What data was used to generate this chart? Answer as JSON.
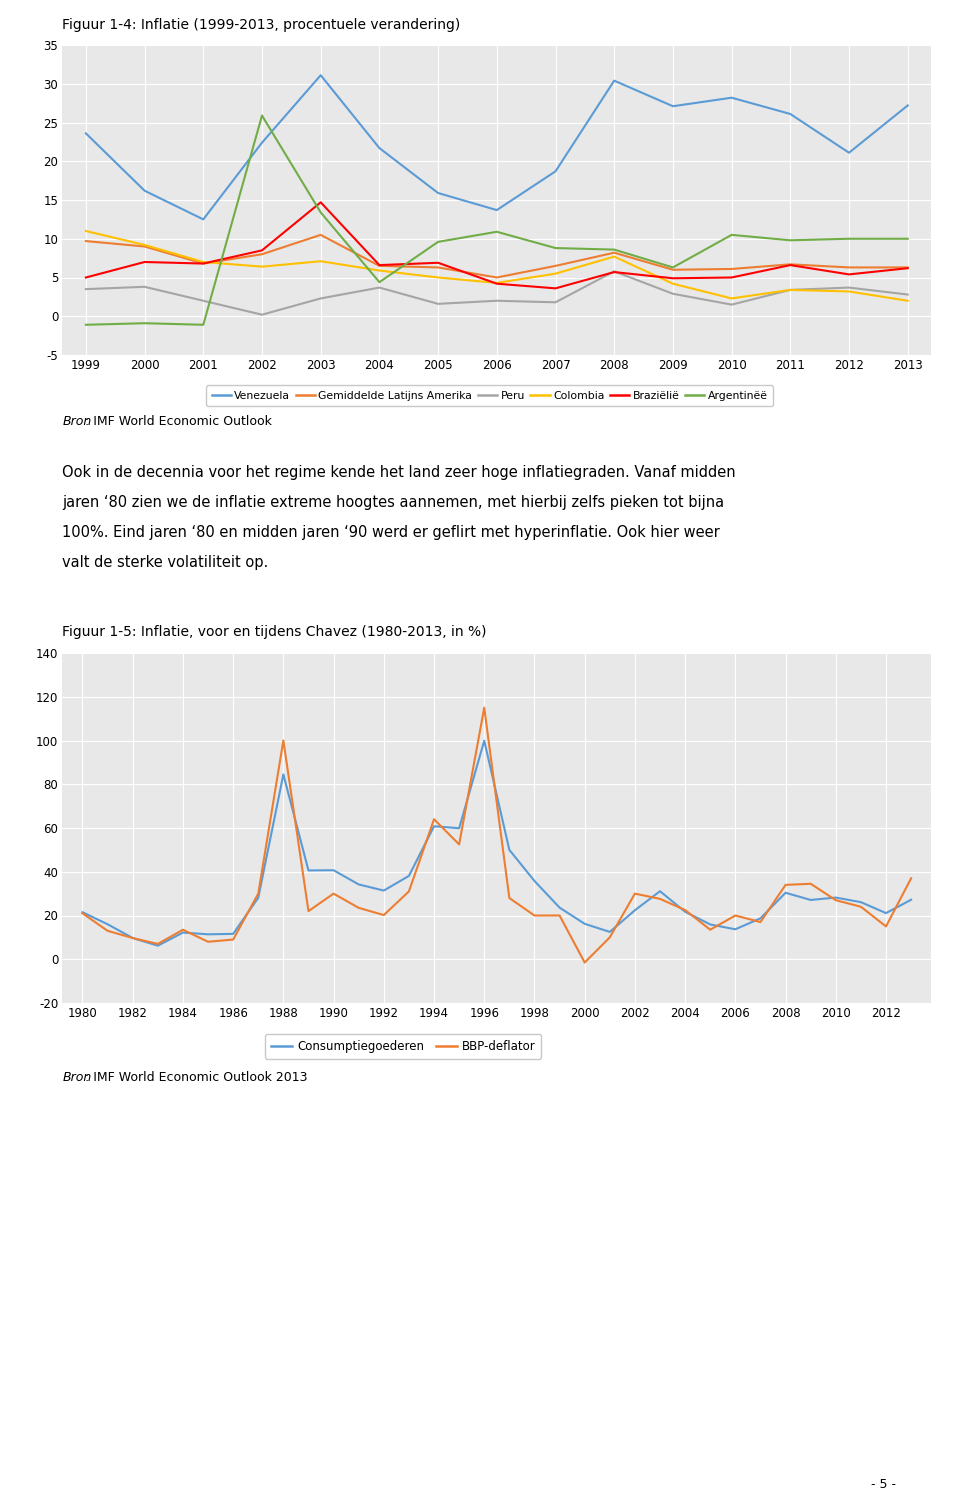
{
  "fig1_title": "Figuur 1-4: Inflatie (1999-2013, procentuele verandering)",
  "fig1_years": [
    1999,
    2000,
    2001,
    2002,
    2003,
    2004,
    2005,
    2006,
    2007,
    2008,
    2009,
    2010,
    2011,
    2012,
    2013
  ],
  "fig1_venezuela": [
    23.6,
    16.2,
    12.5,
    22.4,
    31.1,
    21.7,
    15.9,
    13.7,
    18.7,
    30.4,
    27.1,
    28.2,
    26.1,
    21.1,
    27.2
  ],
  "fig1_gemiddelde": [
    9.7,
    9.0,
    6.8,
    8.0,
    10.5,
    6.5,
    6.3,
    5.0,
    6.5,
    8.2,
    6.0,
    6.1,
    6.7,
    6.3,
    6.3
  ],
  "fig1_peru": [
    3.5,
    3.8,
    2.0,
    0.2,
    2.3,
    3.7,
    1.6,
    2.0,
    1.8,
    5.8,
    2.9,
    1.5,
    3.4,
    3.7,
    2.8
  ],
  "fig1_colombia": [
    11.0,
    9.2,
    7.0,
    6.4,
    7.1,
    5.9,
    5.0,
    4.3,
    5.5,
    7.7,
    4.2,
    2.3,
    3.4,
    3.2,
    2.0
  ],
  "fig1_brazilie": [
    5.0,
    7.0,
    6.8,
    8.5,
    14.7,
    6.6,
    6.9,
    4.2,
    3.6,
    5.7,
    4.9,
    5.0,
    6.6,
    5.4,
    6.2
  ],
  "fig1_argentinie": [
    -1.1,
    -0.9,
    -1.1,
    25.9,
    13.4,
    4.4,
    9.6,
    10.9,
    8.8,
    8.6,
    6.3,
    10.5,
    9.8,
    10.0,
    10.0
  ],
  "fig1_ylim": [
    -5,
    35
  ],
  "fig1_yticks": [
    -5,
    0,
    5,
    10,
    15,
    20,
    25,
    30,
    35
  ],
  "fig1_legend": [
    "Venezuela",
    "Gemiddelde Latijns Amerika",
    "Peru",
    "Colombia",
    "Braziëlië",
    "Argentinëë"
  ],
  "fig1_colors": [
    "#5B9BD5",
    "#ED7D31",
    "#A5A5A5",
    "#FFC000",
    "#FF0000",
    "#70AD47"
  ],
  "fig1_source_italic": "Bron",
  "fig1_source_rest": ": IMF World Economic Outlook",
  "paragraph_lines": [
    "Ook in de decennia voor het regime kende het land zeer hoge inflatiegraden. Vanaf midden",
    "jaren ‘80 zien we de inflatie extreme hoogtes aannemen, met hierbij zelfs pieken tot bijna",
    "100%. Eind jaren ‘80 en midden jaren ‘90 werd er geflirt met hyperinflatie. Ook hier weer",
    "valt de sterke volatiliteit op."
  ],
  "fig2_title": "Figuur 1-5: Inflatie, voor en tijdens Chavez (1980-2013, in %)",
  "fig2_years": [
    1980,
    1981,
    1982,
    1983,
    1984,
    1985,
    1986,
    1987,
    1988,
    1989,
    1990,
    1991,
    1992,
    1993,
    1994,
    1995,
    1996,
    1997,
    1998,
    1999,
    2000,
    2001,
    2002,
    2003,
    2004,
    2005,
    2006,
    2007,
    2008,
    2009,
    2010,
    2011,
    2012,
    2013
  ],
  "fig2_consumptie": [
    21.5,
    16.0,
    9.7,
    6.2,
    12.2,
    11.4,
    11.6,
    28.1,
    84.5,
    40.6,
    40.7,
    34.2,
    31.4,
    38.1,
    60.8,
    59.9,
    99.9,
    50.0,
    35.8,
    23.6,
    16.2,
    12.5,
    22.4,
    31.1,
    21.7,
    15.9,
    13.7,
    18.7,
    30.4,
    27.1,
    28.2,
    26.1,
    21.1,
    27.2
  ],
  "fig2_bbp": [
    21.0,
    13.0,
    9.7,
    7.0,
    13.5,
    8.0,
    9.0,
    30.0,
    100.0,
    22.0,
    30.0,
    23.5,
    20.2,
    31.0,
    64.0,
    52.5,
    115.0,
    28.0,
    20.0,
    20.0,
    -1.5,
    10.0,
    30.0,
    27.6,
    22.5,
    13.5,
    20.0,
    17.0,
    34.0,
    34.5,
    27.0,
    24.0,
    15.0,
    37.0
  ],
  "fig2_ylim": [
    -20,
    140
  ],
  "fig2_yticks": [
    -20,
    0,
    20,
    40,
    60,
    80,
    100,
    120,
    140
  ],
  "fig2_legend": [
    "Consumptiegoederen",
    "BBP-deflator"
  ],
  "fig2_colors": [
    "#5B9BD5",
    "#ED7D31"
  ],
  "fig2_source_italic": "Bron",
  "fig2_source_rest": ": IMF World Economic Outlook 2013",
  "page_number": "- 5 -",
  "background_color": "#FFFFFF",
  "plot_bg_color": "#E8E8E8",
  "grid_color": "#FFFFFF",
  "text_color": "#000000"
}
